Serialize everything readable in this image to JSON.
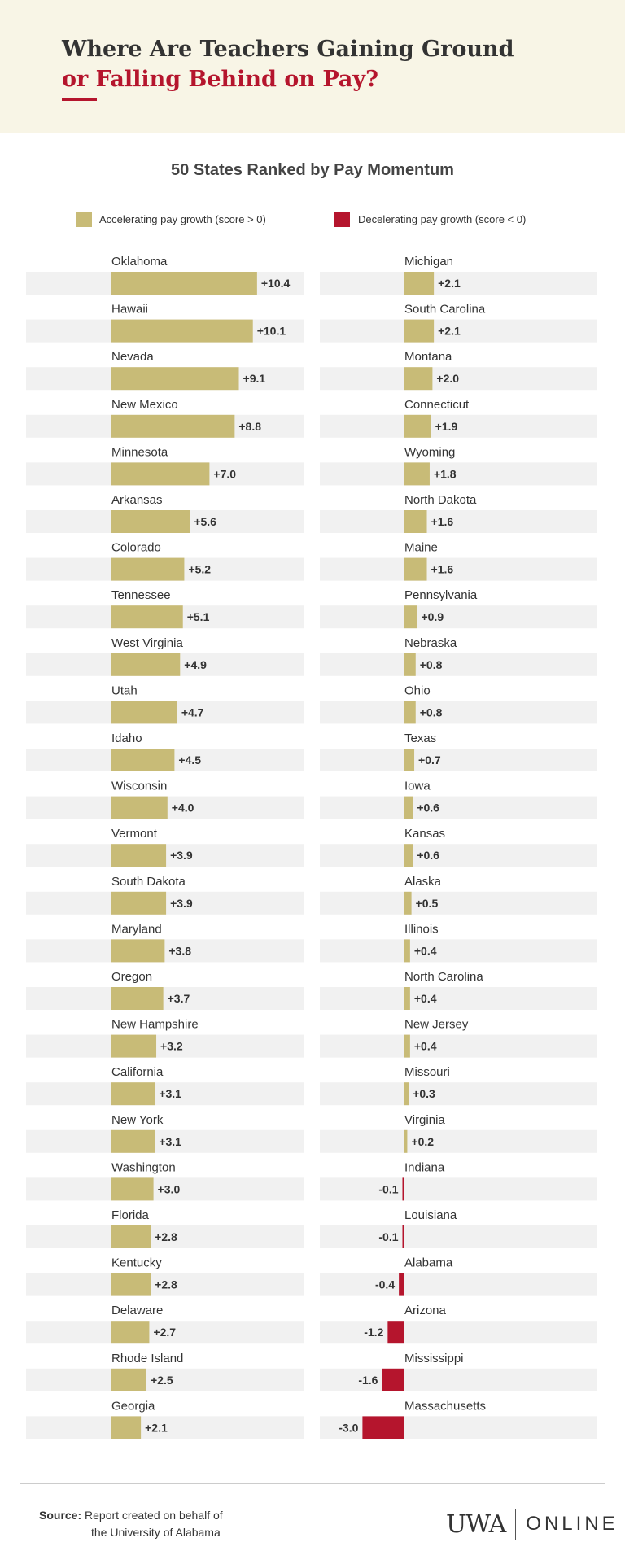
{
  "header": {
    "title_line1": "Where Are Teachers Gaining Ground",
    "title_line2": "or Falling Behind on Pay?"
  },
  "legend": {
    "positive_label": "Accelerating pay growth (score > 0)",
    "negative_label": "Decelerating pay growth (score < 0)"
  },
  "colors": {
    "positive": "#c8bb77",
    "negative": "#b5152d",
    "track": "#f1f1f1"
  },
  "chart_data": {
    "type": "bar",
    "title": "50 States Ranked by Pay Momentum",
    "orientation": "horizontal",
    "columns": [
      {
        "categories": [
          "Oklahoma",
          "Hawaii",
          "Nevada",
          "New Mexico",
          "Minnesota",
          "Arkansas",
          "Colorado",
          "Tennessee",
          "West Virginia",
          "Utah",
          "Idaho",
          "Wisconsin",
          "Vermont",
          "South Dakota",
          "Maryland",
          "Oregon",
          "New Hampshire",
          "California",
          "New York",
          "Washington",
          "Florida",
          "Kentucky",
          "Delaware",
          "Rhode Island",
          "Georgia"
        ],
        "values": [
          10.4,
          10.1,
          9.1,
          8.8,
          7.0,
          5.6,
          5.2,
          5.1,
          4.9,
          4.7,
          4.5,
          4.0,
          3.9,
          3.9,
          3.8,
          3.7,
          3.2,
          3.1,
          3.1,
          3.0,
          2.8,
          2.8,
          2.7,
          2.5,
          2.1
        ],
        "labels": [
          "+10.4",
          "+10.1",
          "+9.1",
          "+8.8",
          "+7.0",
          "+5.6",
          "+5.2",
          "+5.1",
          "+4.9",
          "+4.7",
          "+4.5",
          "+4.0",
          "+3.9",
          "+3.9",
          "+3.8",
          "+3.7",
          "+3.2",
          "+3.1",
          "+3.1",
          "+3.0",
          "+2.8",
          "+2.8",
          "+2.7",
          "+2.5",
          "+2.1"
        ]
      },
      {
        "categories": [
          "Michigan",
          "South Carolina",
          "Montana",
          "Connecticut",
          "Wyoming",
          "North Dakota",
          "Maine",
          "Pennsylvania",
          "Nebraska",
          "Ohio",
          "Texas",
          "Iowa",
          "Kansas",
          "Alaska",
          "Illinois",
          "North Carolina",
          "New Jersey",
          "Missouri",
          "Virginia",
          "Indiana",
          "Louisiana",
          "Alabama",
          "Arizona",
          "Mississippi",
          "Massachusetts"
        ],
        "values": [
          2.1,
          2.1,
          2.0,
          1.9,
          1.8,
          1.6,
          1.6,
          0.9,
          0.8,
          0.8,
          0.7,
          0.6,
          0.6,
          0.5,
          0.4,
          0.4,
          0.4,
          0.3,
          0.2,
          -0.1,
          -0.1,
          -0.4,
          -1.2,
          -1.6,
          -3.0
        ],
        "labels": [
          "+2.1",
          "+2.1",
          "+2.0",
          "+1.9",
          "+1.8",
          "+1.6",
          "+1.6",
          "+0.9",
          "+0.8",
          "+0.8",
          "+0.7",
          "+0.6",
          "+0.6",
          "+0.5",
          "+0.4",
          "+0.4",
          "+0.4",
          "+0.3",
          "+0.2",
          "-0.1",
          "-0.1",
          "-0.4",
          "-1.2",
          "-1.6",
          "-3.0"
        ]
      }
    ]
  },
  "footer": {
    "source_label": "Source:",
    "source_text_1": "Report created on behalf of",
    "source_text_2": "the University of Alabama",
    "logo_left": "UWA",
    "logo_right": "ONLINE"
  }
}
